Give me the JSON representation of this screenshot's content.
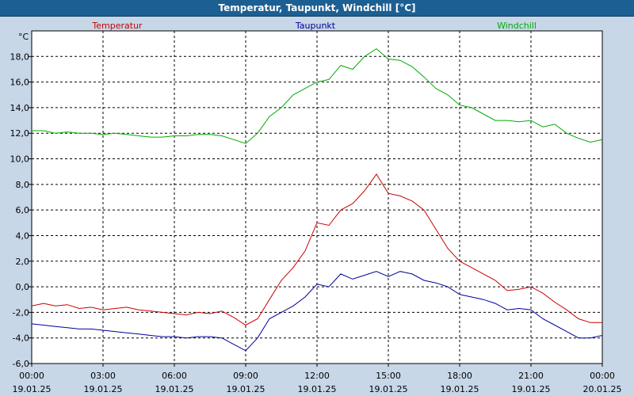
{
  "window": {
    "title": "Temperatur, Taupunkt, Windchill [°C]"
  },
  "chart_data": {
    "type": "line",
    "title": "Temperatur, Taupunkt, Windchill [°C]",
    "ylabel": "°C",
    "ylim": [
      -6,
      20
    ],
    "yticks": [
      {
        "value": 18,
        "label": "18,0"
      },
      {
        "value": 16,
        "label": "16,0"
      },
      {
        "value": 14,
        "label": "14,0"
      },
      {
        "value": 12,
        "label": "12,0"
      },
      {
        "value": 10,
        "label": "10,0"
      },
      {
        "value": 8,
        "label": "8,0"
      },
      {
        "value": 6,
        "label": "6,0"
      },
      {
        "value": 4,
        "label": "4,0"
      },
      {
        "value": 2,
        "label": "2,0"
      },
      {
        "value": 0,
        "label": "0,0"
      },
      {
        "value": -2,
        "label": "-2,0"
      },
      {
        "value": -4,
        "label": "-4,0"
      },
      {
        "value": -6,
        "label": "-6,0"
      }
    ],
    "xlim": [
      0,
      24
    ],
    "xticks": [
      {
        "value": 0,
        "time": "00:00",
        "date": "19.01.25"
      },
      {
        "value": 3,
        "time": "03:00",
        "date": "19.01.25"
      },
      {
        "value": 6,
        "time": "06:00",
        "date": "19.01.25"
      },
      {
        "value": 9,
        "time": "09:00",
        "date": "19.01.25"
      },
      {
        "value": 12,
        "time": "12:00",
        "date": "19.01.25"
      },
      {
        "value": 15,
        "time": "15:00",
        "date": "19.01.25"
      },
      {
        "value": 18,
        "time": "18:00",
        "date": "19.01.25"
      },
      {
        "value": 21,
        "time": "21:00",
        "date": "19.01.25"
      },
      {
        "value": 24,
        "time": "00:00",
        "date": "20.01.25"
      }
    ],
    "grid": true,
    "colors": {
      "background": "#c7d7e8",
      "plot": "#ffffff",
      "grid": "#000000"
    },
    "series": [
      {
        "name": "Temperatur",
        "color": "#cc0000",
        "x": [
          0,
          0.5,
          1,
          1.5,
          2,
          2.5,
          3,
          3.5,
          4,
          4.5,
          5,
          5.5,
          6,
          6.5,
          7,
          7.5,
          8,
          8.5,
          9,
          9.5,
          10,
          10.5,
          11,
          11.5,
          12,
          12.5,
          13,
          13.5,
          14,
          14.5,
          15,
          15.5,
          16,
          16.5,
          17,
          17.5,
          18,
          18.5,
          19,
          19.5,
          20,
          20.5,
          21,
          21.5,
          22,
          22.5,
          23,
          23.5,
          24
        ],
        "values": [
          -1.5,
          -1.3,
          -1.5,
          -1.4,
          -1.7,
          -1.6,
          -1.8,
          -1.7,
          -1.6,
          -1.8,
          -1.9,
          -2.0,
          -2.1,
          -2.2,
          -2.0,
          -2.1,
          -1.9,
          -2.4,
          -3.0,
          -2.5,
          -1.0,
          0.5,
          1.5,
          2.8,
          5.0,
          4.8,
          6.0,
          6.5,
          7.5,
          8.8,
          7.3,
          7.1,
          6.7,
          6.0,
          4.5,
          3.0,
          2.0,
          1.5,
          1.0,
          0.5,
          -0.3,
          -0.2,
          0.0,
          -0.5,
          -1.2,
          -1.8,
          -2.5,
          -2.8,
          -2.8
        ]
      },
      {
        "name": "Taupunkt",
        "color": "#000099",
        "x": [
          0,
          0.5,
          1,
          1.5,
          2,
          2.5,
          3,
          3.5,
          4,
          4.5,
          5,
          5.5,
          6,
          6.5,
          7,
          7.5,
          8,
          8.5,
          9,
          9.5,
          10,
          10.5,
          11,
          11.5,
          12,
          12.5,
          13,
          13.5,
          14,
          14.5,
          15,
          15.5,
          16,
          16.5,
          17,
          17.5,
          18,
          18.5,
          19,
          19.5,
          20,
          20.5,
          21,
          21.5,
          22,
          22.5,
          23,
          23.5,
          24
        ],
        "values": [
          -2.9,
          -3.0,
          -3.1,
          -3.2,
          -3.3,
          -3.3,
          -3.4,
          -3.5,
          -3.6,
          -3.7,
          -3.8,
          -3.9,
          -3.9,
          -4.0,
          -3.9,
          -3.9,
          -4.0,
          -4.5,
          -5.0,
          -4.0,
          -2.5,
          -2.0,
          -1.5,
          -0.8,
          0.2,
          0.0,
          1.0,
          0.6,
          0.9,
          1.2,
          0.8,
          1.2,
          1.0,
          0.5,
          0.3,
          0.0,
          -0.6,
          -0.8,
          -1.0,
          -1.3,
          -1.8,
          -1.7,
          -1.8,
          -2.5,
          -3.0,
          -3.5,
          -4.0,
          -4.0,
          -3.8
        ]
      },
      {
        "name": "Windchill",
        "color": "#00aa00",
        "x": [
          0,
          0.5,
          1,
          1.5,
          2,
          2.5,
          3,
          3.5,
          4,
          4.5,
          5,
          5.5,
          6,
          6.5,
          7,
          7.5,
          8,
          8.5,
          9,
          9.5,
          10,
          10.5,
          11,
          11.5,
          12,
          12.5,
          13,
          13.5,
          14,
          14.5,
          15,
          15.5,
          16,
          16.5,
          17,
          17.5,
          18,
          18.5,
          19,
          19.5,
          20,
          20.5,
          21,
          21.5,
          22,
          22.5,
          23,
          23.5,
          24
        ],
        "values": [
          12.2,
          12.2,
          12.0,
          12.1,
          12.0,
          12.0,
          11.9,
          12.0,
          11.9,
          11.8,
          11.7,
          11.7,
          11.8,
          11.8,
          11.9,
          11.9,
          11.8,
          11.5,
          11.2,
          12.0,
          13.3,
          14.0,
          15.0,
          15.5,
          16.0,
          16.2,
          17.3,
          17.0,
          18.0,
          18.6,
          17.8,
          17.7,
          17.2,
          16.4,
          15.5,
          15.0,
          14.2,
          14.0,
          13.5,
          13.0,
          13.0,
          12.9,
          13.0,
          12.5,
          12.7,
          12.0,
          11.6,
          11.3,
          11.5
        ]
      }
    ]
  }
}
